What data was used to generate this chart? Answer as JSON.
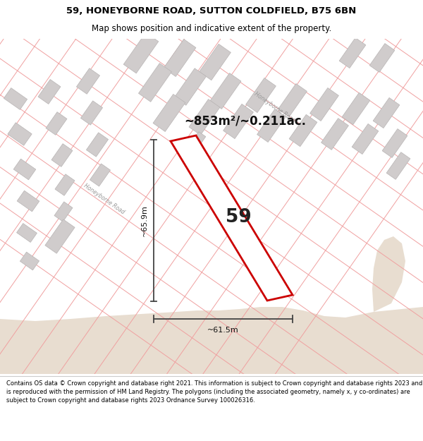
{
  "title_line1": "59, HONEYBORNE ROAD, SUTTON COLDFIELD, B75 6BN",
  "title_line2": "Map shows position and indicative extent of the property.",
  "area_text": "~853m²/~0.211ac.",
  "label_59": "59",
  "dim_vertical": "~65.9m",
  "dim_horizontal": "~61.5m",
  "footer_text": "Contains OS data © Crown copyright and database right 2021. This information is subject to Crown copyright and database rights 2023 and is reproduced with the permission of HM Land Registry. The polygons (including the associated geometry, namely x, y co-ordinates) are subject to Crown copyright and database rights 2023 Ordnance Survey 100026316.",
  "map_bg": "#f2efeb",
  "sandy_color": "#e8ddd0",
  "plot_fill": "#ffffff",
  "plot_edge": "#cc0000",
  "road_line": "#f0a0a0",
  "building_fill": "#d0cccc",
  "building_edge": "#b8b4b4",
  "dim_color": "#444444",
  "road_label_color": "#999999",
  "footer_bg": "#ffffff",
  "title_bg": "#ffffff"
}
